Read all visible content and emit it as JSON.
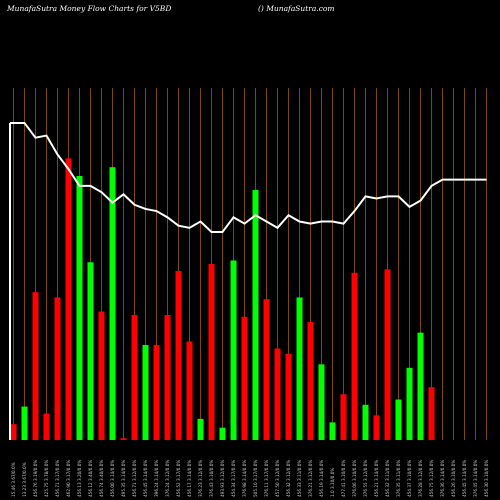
{
  "header": {
    "title": "MunafaSutra  Money Flow  Charts for V5BD",
    "site": "() MunafaSutra.com"
  },
  "colors": {
    "background": "#000000",
    "up": "#00ff00",
    "down": "#ff0000",
    "grid": "#b36b00",
    "line": "#ffffff"
  },
  "chart_data": {
    "type": "bar",
    "x_tick_labels": [
      "15.46 3.67/0.0%",
      "13.23 3.67/0.0%",
      "456.76 3.19/0.0%",
      "425.75 3.78/0.0%",
      "456.71 3.17/0.0%",
      "462.90 3.17/0.0%",
      "456.13 3.20/0.0%",
      "456.12 3.40/0.0%",
      "456.74 3.40/0.0%",
      "456.00 3.14/0.0%",
      "495.35 3.14/0.0%",
      "456.71 3.12/0.0%",
      "456.45 3.14/0.0%",
      "396.24 3.14/0.0%",
      "376.24 3.12/0.0%",
      "456.52 3.17/0.0%",
      "456.17 3.14/0.0%",
      "376.23 3.12/0.0%",
      "376.43 3.10/0.0%",
      "493.93 3.12/0.0%",
      "454.34 3.17/0.0%",
      "376.98 3.14/0.0%",
      "505.10 3.17/0.0%",
      "376.11 3.17/0.0%",
      "457.50 3.12/0.0%",
      "456.32 3.12/0.0%",
      "456.33 3.11/0.0%",
      "376.21 3.12/0.0%",
      "456.19 3.14/0.0%",
      "1.0 3.10/0.0%",
      "477.41 3.10/0.0%",
      "376.06 3.10/0.0%",
      "376.55 3.12/0.0%",
      "456.21 3.14/0.0%",
      "456.32 3.11/0.0%",
      "376.35 3.11/0.0%",
      "454.37 3.10/0.0%",
      "376.28 3.12/0.0%",
      "456.75 3.12/0.0%",
      "376.36 3.14/0.0%",
      "456.26 3.10/0.0%",
      "456.45 3.14/0.0%",
      "376.45 3.14/0.0%",
      "456.30 3.10/0.0%"
    ],
    "bar_colors": [
      "down",
      "up",
      "down",
      "down",
      "down",
      "down",
      "up",
      "up",
      "down",
      "up",
      "down",
      "down",
      "up",
      "down",
      "down",
      "down",
      "down",
      "up",
      "down",
      "up",
      "up",
      "down",
      "up",
      "down",
      "down",
      "down",
      "up",
      "down",
      "up",
      "up",
      "down",
      "down",
      "up",
      "down",
      "down",
      "up",
      "up",
      "up",
      "down",
      "up",
      "up",
      "up",
      "up",
      "down"
    ],
    "bar_values": [
      4.5,
      9.5,
      42,
      7.5,
      40.5,
      80,
      75,
      50.5,
      36.5,
      77.5,
      0.5,
      35.5,
      27,
      27,
      35.5,
      48,
      28,
      6,
      50,
      3.5,
      51,
      35,
      71,
      40,
      26,
      24.5,
      40.5,
      33.5,
      21.5,
      5,
      13,
      47.5,
      10,
      7,
      48.5,
      11.5,
      20.5,
      30.5,
      15,
      0,
      0,
      0,
      0,
      0
    ],
    "line_values": [
      100,
      100,
      96.5,
      97,
      92.5,
      89,
      85,
      85,
      83.5,
      81,
      83,
      80.5,
      79.5,
      79,
      77.5,
      75.5,
      75,
      76.5,
      74,
      74,
      77.5,
      76,
      78,
      76.5,
      75,
      78,
      76.5,
      76,
      76.5,
      76.5,
      76,
      79,
      82.5,
      82,
      82.5,
      82.5,
      80,
      81.5,
      85,
      86.5,
      86.5,
      86.5,
      86.5,
      86.5
    ],
    "ylim": [
      0,
      100
    ]
  }
}
